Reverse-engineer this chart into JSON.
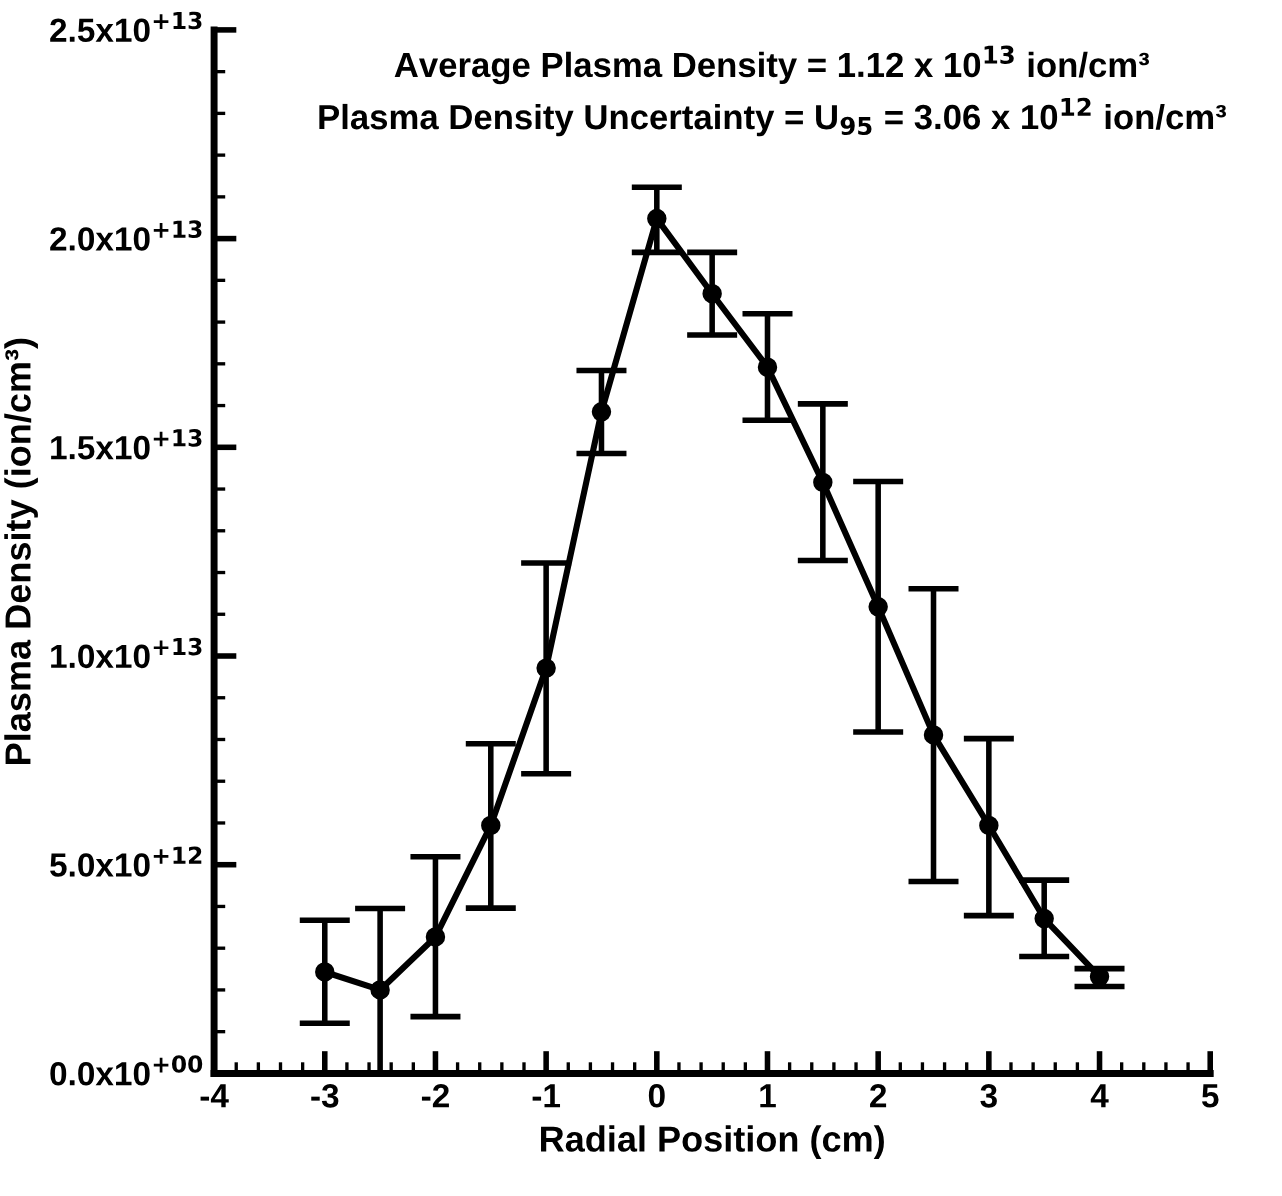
{
  "chart_data": {
    "type": "line",
    "xlabel": "Radial Position (cm)",
    "ylabel": "Plasma Density (ion/cm³)",
    "annotations": [
      "Average Plasma Density = 1.12 x 10$^{13}$ ion/cm³",
      "Plasma Density Uncertainty = U$_{95}$ = 3.06 x 10$^{12}$ ion/cm³"
    ],
    "x": [
      -3,
      -2.5,
      -2,
      -1.5,
      -1,
      -0.5,
      0,
      0.5,
      1,
      1.5,
      2,
      2.5,
      3,
      3.5,
      4
    ],
    "series": [
      {
        "color": "#000000",
        "values": [
          2430000000000.0,
          2000000000000.0,
          3270000000000.0,
          5940000000000.0,
          9710000000000.0,
          15850000000000.0,
          20480000000000.0,
          18680000000000.0,
          16920000000000.0,
          14160000000000.0,
          11180000000000.0,
          8110000000000.0,
          5940000000000.0,
          3710000000000.0,
          2320000000000.0
        ],
        "errors": [
          [
            1200000000000.0,
            3670000000000.0
          ],
          [
            0,
            3950000000000.0
          ],
          [
            1360000000000.0,
            5190000000000.0
          ],
          [
            3960000000000.0,
            7900000000000.0
          ],
          [
            7180000000000.0,
            12230000000000.0
          ],
          [
            14850000000000.0,
            16840000000000.0
          ],
          [
            19670000000000.0,
            21230000000000.0
          ],
          [
            17690000000000.0,
            19670000000000.0
          ],
          [
            15650000000000.0,
            18200000000000.0
          ],
          [
            12290000000000.0,
            16040000000000.0
          ],
          [
            8180000000000.0,
            14180000000000.0
          ],
          [
            4600000000000.0,
            11610000000000.0
          ],
          [
            3780000000000.0,
            8020000000000.0
          ],
          [
            2800000000000.0,
            4630000000000.0
          ],
          [
            2080000000000.0,
            2510000000000.0
          ]
        ]
      }
    ],
    "xlim": [
      -4,
      5
    ],
    "xticks": [
      -4,
      -3,
      -2,
      -1,
      0,
      1,
      2,
      3,
      4,
      5
    ],
    "ylim": [
      0,
      25000000000000.0
    ],
    "yticks": [
      {
        "value": 0,
        "label": "0.0x10$^{+00}$"
      },
      {
        "value": 5000000000000.0,
        "label": "5.0x10$^{+12}$"
      },
      {
        "value": 10000000000000.0,
        "label": "1.0x10$^{+13}$"
      },
      {
        "value": 15000000000000.0,
        "label": "1.5x10$^{+13}$"
      },
      {
        "value": 20000000000000.0,
        "label": "2.0x10$^{+13}$"
      },
      {
        "value": 25000000000000.0,
        "label": "2.5x10$^{+13}$"
      }
    ],
    "marker": "circle",
    "line_style": "solid",
    "grid": false,
    "legend": false
  }
}
